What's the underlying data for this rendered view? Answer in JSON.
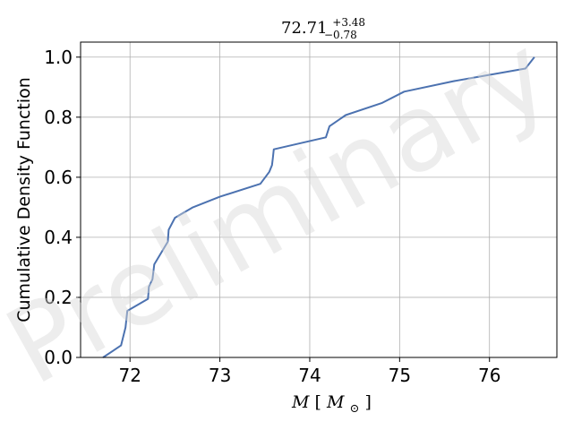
{
  "watermark": "Preliminary",
  "chart_data": {
    "type": "line",
    "title": {
      "base": "72.71",
      "sup": "+3.48",
      "sub": "−0.78"
    },
    "xlabel": {
      "italic": "M",
      "open": "[",
      "sub_base": "M",
      "sub": "⊙",
      "close": "]"
    },
    "ylabel": "Cumulative Density Function",
    "xlim": [
      71.45,
      76.75
    ],
    "ylim": [
      0.0,
      1.05
    ],
    "xticks": [
      72,
      73,
      74,
      75,
      76
    ],
    "yticks": [
      0.0,
      0.2,
      0.4,
      0.6,
      0.8,
      1.0
    ],
    "ytick_labels": [
      "0.0",
      "0.2",
      "0.4",
      "0.6",
      "0.8",
      "1.0"
    ],
    "grid": true,
    "series": [
      {
        "color": "#4c72b0",
        "x": [
          71.7,
          71.9,
          71.95,
          71.97,
          72.2,
          72.21,
          72.25,
          72.27,
          72.42,
          72.43,
          72.5,
          72.7,
          73.0,
          73.45,
          73.55,
          73.58,
          73.59,
          73.6,
          74.18,
          74.22,
          74.4,
          74.8,
          75.05,
          75.6,
          76.4,
          76.5
        ],
        "y": [
          0.0,
          0.04,
          0.1,
          0.155,
          0.195,
          0.235,
          0.26,
          0.31,
          0.385,
          0.425,
          0.465,
          0.5,
          0.535,
          0.578,
          0.618,
          0.64,
          0.665,
          0.693,
          0.733,
          0.77,
          0.807,
          0.847,
          0.885,
          0.92,
          0.962,
          1.0
        ]
      }
    ]
  }
}
